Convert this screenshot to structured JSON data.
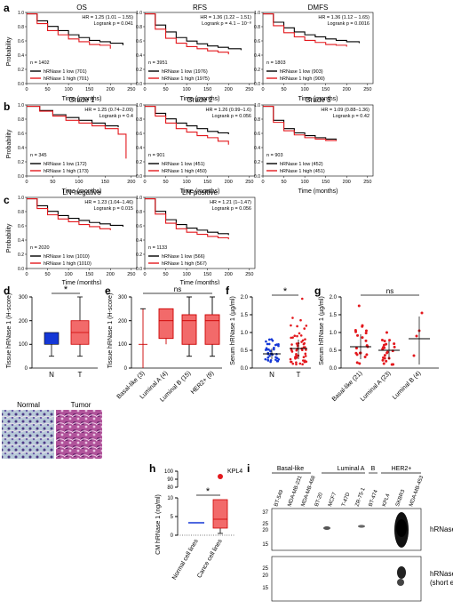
{
  "panel_labels": [
    "a",
    "b",
    "c",
    "d",
    "e",
    "f",
    "g",
    "h",
    "i"
  ],
  "km_axes": {
    "ylabel": "Probability",
    "xlabel": "Time (months)",
    "yticks": [
      "0.0",
      "0.2",
      "0.4",
      "0.6",
      "0.8",
      "1.0"
    ],
    "xticks_250": [
      "0",
      "50",
      "100",
      "150",
      "200",
      "250"
    ],
    "xticks_200": [
      "0",
      "50",
      "100",
      "150",
      "200"
    ],
    "xticks_c": [
      "0",
      "50",
      "100",
      "150",
      "200",
      "250"
    ]
  },
  "km_panels": [
    {
      "title": "OS",
      "hr": "HR = 1.25 (1.01 – 1.55)",
      "logrank": "Logrank p = 0.041",
      "n": "n = 1402",
      "low": "hRNase 1 low (701)",
      "high": "hRNase 1 high (701)"
    },
    {
      "title": "RFS",
      "hr": "HR = 1.36 (1.22 – 1.51)",
      "logrank": "Logrank p = 4.1 – 10⁻⁸",
      "n": "n = 3951",
      "low": "hRNase 1 low (1976)",
      "high": "hRNase 1 high (1975)"
    },
    {
      "title": "DMFS",
      "hr": "HR = 1.36 (1.12 – 1.65)",
      "logrank": "Logrank p = 0.0016",
      "n": "n = 1803",
      "low": "hRNase 1 low (903)",
      "high": "hRNase 1 high (900)"
    },
    {
      "title": "Grade 1",
      "hr": "HR = 1.25 (0.74–2.09)",
      "logrank": "Logrank p = 0.4",
      "n": "n = 345",
      "low": "hRNase 1 low (172)",
      "high": "hRNase 1 high (173)"
    },
    {
      "title": "Grade 2",
      "hr": "HR = 1.26 (0.99–1.6)",
      "logrank": "Logrank p = 0.056",
      "n": "n = 901",
      "low": "hRNase 1 low (451)",
      "high": "hRNase 1 high (450)"
    },
    {
      "title": "Grade 3",
      "hr": "HR = 1.09 (0.88–1.36)",
      "logrank": "Logrank p = 0.42",
      "n": "n = 903",
      "low": "hRNase 1 low (452)",
      "high": "hRNase 1 high (451)"
    },
    {
      "title": "LN-negative",
      "hr": "HR = 1.23 (1.04–1.46)",
      "logrank": "Logrank p = 0.015",
      "n": "n = 2020",
      "low": "hRNase 1 low (1010)",
      "high": "hRNase 1 high (1010)"
    },
    {
      "title": "LN-positive",
      "hr": "HR = 1.21 (1–1.47)",
      "logrank": "Logrank p = 0.056",
      "n": "n = 1133",
      "low": "hRNase 1 low (566)",
      "high": "hRNase 1 high (567)"
    }
  ],
  "panel_d": {
    "ylabel": "Tissue hRNase 1 (H-score)",
    "categories": [
      "N",
      "T"
    ],
    "yticks": [
      "0",
      "100",
      "200",
      "300"
    ],
    "sig": "*",
    "images": [
      "Normal",
      "Tumor"
    ]
  },
  "panel_e": {
    "ylabel": "Tissue hRNase 1 (H-score)",
    "categories": [
      "Basal-like (3)",
      "Luminal A (4)",
      "Luminal B (15)",
      "HER2+ (9)"
    ],
    "yticks": [
      "0",
      "100",
      "200",
      "300"
    ],
    "sig": "ns"
  },
  "panel_f": {
    "ylabel": "Serum hRNase 1 (µg/ml)",
    "categories": [
      "N",
      "T"
    ],
    "yticks": [
      "0.0",
      "0.5",
      "1.0",
      "1.5",
      "2.0"
    ],
    "sig": "*"
  },
  "panel_g": {
    "ylabel": "Serum hRNase 1 (µg/ml)",
    "categories": [
      "Basal-like (21)",
      "Luminal A (23)",
      "Luminal B (4)"
    ],
    "yticks": [
      "0.0",
      "0.5",
      "1.0",
      "1.5",
      "2.0"
    ],
    "sig": "ns"
  },
  "panel_h": {
    "ylabel": "CM hRNase 1 (ng/ml)",
    "categories": [
      "Normal cell lines",
      "Cance cell lines"
    ],
    "yticks_top": [
      "80",
      "90",
      "100"
    ],
    "yticks_bottom": [
      "0",
      "5",
      "10"
    ],
    "outlier_label": "KPL4",
    "sig": "*"
  },
  "panel_i": {
    "groups": [
      "Basal-like",
      "Luminal A",
      "B",
      "HER2+"
    ],
    "lanes": [
      "BT-549",
      "MDA-MB-231",
      "MDA-MB-468",
      "BT-20",
      "MCF7",
      "T-47D",
      "ZR-75-1",
      "BT-474",
      "KPL4",
      "SKBR3",
      "MDA-MB-453"
    ],
    "markers_top": [
      "37",
      "25",
      "20",
      "15"
    ],
    "markers_bottom": [
      "25",
      "20",
      "15"
    ],
    "label_top": "hRNase 1",
    "label_bottom": "hRNase 1 (short exp.)"
  },
  "chart_data": [
    {
      "type": "line",
      "title": "OS",
      "xlabel": "Time (months)",
      "ylabel": "Probability",
      "xlim": [
        0,
        250
      ],
      "ylim": [
        0,
        1
      ],
      "series": [
        {
          "name": "hRNase 1 low (701)",
          "color": "#000000",
          "x": [
            0,
            25,
            50,
            75,
            100,
            125,
            150,
            175,
            200,
            230
          ],
          "y": [
            1,
            0.9,
            0.82,
            0.76,
            0.7,
            0.66,
            0.62,
            0.6,
            0.58,
            0.55
          ]
        },
        {
          "name": "hRNase 1 high (701)",
          "color": "#e3181d",
          "x": [
            0,
            25,
            50,
            75,
            100,
            125,
            150,
            175,
            200
          ],
          "y": [
            1,
            0.86,
            0.76,
            0.7,
            0.64,
            0.6,
            0.56,
            0.55,
            0.5
          ]
        }
      ]
    },
    {
      "type": "line",
      "title": "RFS",
      "xlabel": "Time (months)",
      "ylabel": "Probability",
      "xlim": [
        0,
        250
      ],
      "ylim": [
        0,
        1
      ],
      "series": [
        {
          "name": "hRNase 1 low (1976)",
          "color": "#000000",
          "x": [
            0,
            25,
            50,
            75,
            100,
            125,
            150,
            175,
            200,
            230
          ],
          "y": [
            1,
            0.84,
            0.74,
            0.66,
            0.61,
            0.57,
            0.54,
            0.52,
            0.5,
            0.48
          ]
        },
        {
          "name": "hRNase 1 high (1975)",
          "color": "#e3181d",
          "x": [
            0,
            25,
            50,
            75,
            100,
            125,
            150,
            175,
            200
          ],
          "y": [
            1,
            0.78,
            0.65,
            0.58,
            0.53,
            0.5,
            0.47,
            0.45,
            0.42
          ]
        }
      ]
    },
    {
      "type": "line",
      "title": "DMFS",
      "xlabel": "Time (months)",
      "ylabel": "Probability",
      "xlim": [
        0,
        250
      ],
      "ylim": [
        0,
        1
      ],
      "series": [
        {
          "name": "hRNase 1 low (903)",
          "color": "#000000",
          "x": [
            0,
            25,
            50,
            75,
            100,
            125,
            150,
            175,
            200,
            230
          ],
          "y": [
            1,
            0.88,
            0.8,
            0.74,
            0.7,
            0.67,
            0.64,
            0.62,
            0.6,
            0.58
          ]
        },
        {
          "name": "hRNase 1 high (900)",
          "color": "#e3181d",
          "x": [
            0,
            25,
            50,
            75,
            100,
            125,
            150,
            175,
            200
          ],
          "y": [
            1,
            0.83,
            0.73,
            0.67,
            0.62,
            0.59,
            0.56,
            0.55,
            0.53
          ]
        }
      ]
    },
    {
      "type": "line",
      "title": "Grade 1",
      "xlabel": "Time (months)",
      "ylabel": "Probability",
      "xlim": [
        0,
        200
      ],
      "ylim": [
        0,
        1
      ],
      "series": [
        {
          "name": "hRNase 1 low (172)",
          "color": "#000000",
          "x": [
            0,
            25,
            50,
            75,
            100,
            125,
            150,
            175
          ],
          "y": [
            1,
            0.94,
            0.88,
            0.84,
            0.8,
            0.76,
            0.72,
            0.7
          ]
        },
        {
          "name": "hRNase 1 high (173)",
          "color": "#e3181d",
          "x": [
            0,
            25,
            50,
            75,
            100,
            125,
            150,
            175,
            190
          ],
          "y": [
            1,
            0.93,
            0.86,
            0.8,
            0.76,
            0.72,
            0.68,
            0.6,
            0.25
          ]
        }
      ]
    },
    {
      "type": "line",
      "title": "Grade 2",
      "xlabel": "Time (months)",
      "ylabel": "Probability",
      "xlim": [
        0,
        250
      ],
      "ylim": [
        0,
        1
      ],
      "series": [
        {
          "name": "hRNase 1 low (451)",
          "color": "#000000",
          "x": [
            0,
            25,
            50,
            75,
            100,
            125,
            150,
            175,
            200
          ],
          "y": [
            1,
            0.9,
            0.82,
            0.76,
            0.72,
            0.68,
            0.64,
            0.62,
            0.6
          ]
        },
        {
          "name": "hRNase 1 high (450)",
          "color": "#e3181d",
          "x": [
            0,
            25,
            50,
            75,
            100,
            125,
            150,
            175,
            200
          ],
          "y": [
            1,
            0.86,
            0.76,
            0.68,
            0.63,
            0.58,
            0.55,
            0.5,
            0.45
          ]
        }
      ]
    },
    {
      "type": "line",
      "title": "Grade 3",
      "xlabel": "Time (months)",
      "ylabel": "Probability",
      "xlim": [
        0,
        250
      ],
      "ylim": [
        0,
        1
      ],
      "series": [
        {
          "name": "hRNase 1 low (452)",
          "color": "#000000",
          "x": [
            0,
            25,
            50,
            75,
            100,
            125,
            150,
            175
          ],
          "y": [
            1,
            0.8,
            0.68,
            0.62,
            0.58,
            0.55,
            0.53,
            0.52
          ]
        },
        {
          "name": "hRNase 1 high (451)",
          "color": "#e3181d",
          "x": [
            0,
            25,
            50,
            75,
            100,
            125,
            150,
            175
          ],
          "y": [
            1,
            0.77,
            0.65,
            0.59,
            0.55,
            0.53,
            0.51,
            0.5
          ]
        }
      ]
    },
    {
      "type": "line",
      "title": "LN-negative",
      "xlabel": "Time (months)",
      "ylabel": "Probability",
      "xlim": [
        0,
        250
      ],
      "ylim": [
        0,
        1
      ],
      "series": [
        {
          "name": "hRNase 1 low (1010)",
          "color": "#000000",
          "x": [
            0,
            25,
            50,
            75,
            100,
            125,
            150,
            175,
            200,
            230
          ],
          "y": [
            1,
            0.9,
            0.82,
            0.76,
            0.72,
            0.69,
            0.66,
            0.64,
            0.62,
            0.6
          ]
        },
        {
          "name": "hRNase 1 high (1010)",
          "color": "#e3181d",
          "x": [
            0,
            25,
            50,
            75,
            100,
            125,
            150,
            175,
            200
          ],
          "y": [
            1,
            0.86,
            0.77,
            0.71,
            0.67,
            0.63,
            0.6,
            0.57,
            0.55
          ]
        }
      ]
    },
    {
      "type": "line",
      "title": "LN-positive",
      "xlabel": "Time (months)",
      "ylabel": "Probability",
      "xlim": [
        0,
        250
      ],
      "ylim": [
        0,
        1
      ],
      "series": [
        {
          "name": "hRNase 1 low (566)",
          "color": "#000000",
          "x": [
            0,
            25,
            50,
            75,
            100,
            125,
            150,
            175,
            200
          ],
          "y": [
            1,
            0.82,
            0.7,
            0.63,
            0.58,
            0.55,
            0.52,
            0.5,
            0.48
          ]
        },
        {
          "name": "hRNase 1 high (567)",
          "color": "#e3181d",
          "x": [
            0,
            25,
            50,
            75,
            100,
            125,
            150,
            175,
            200
          ],
          "y": [
            1,
            0.78,
            0.65,
            0.57,
            0.52,
            0.49,
            0.46,
            0.44,
            0.42
          ]
        }
      ]
    }
  ]
}
